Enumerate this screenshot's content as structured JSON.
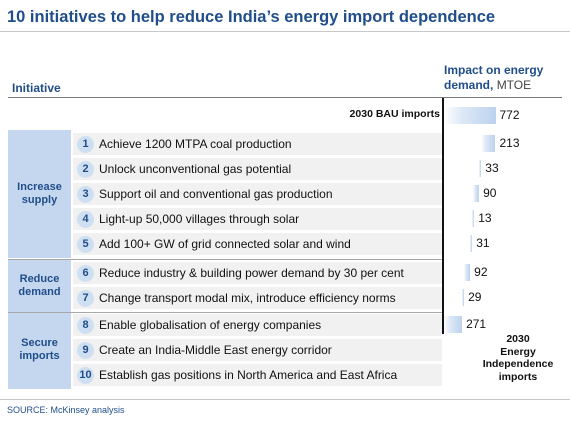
{
  "title": "10 initiatives to help reduce India’s energy import dependence",
  "source": "SOURCE: McKinsey analysis",
  "chart_data": {
    "type": "waterfall",
    "column_headers": {
      "initiative": "Initiative",
      "impact": "Impact on energy demand,",
      "unit": "MTOE"
    },
    "start": {
      "label": "2030 BAU imports",
      "value": 772
    },
    "end": {
      "label": "2030 Energy Independence imports",
      "label_lines": [
        "2030",
        "Energy",
        "Independence",
        "imports"
      ],
      "value": 271
    },
    "groups": [
      {
        "name": "Increase supply",
        "lines": [
          "Increase",
          "supply"
        ],
        "rows": [
          1,
          2,
          3,
          4,
          5
        ]
      },
      {
        "name": "Reduce demand",
        "lines": [
          "Reduce",
          "demand"
        ],
        "rows": [
          6,
          7
        ]
      },
      {
        "name": "Secure imports",
        "lines": [
          "Secure",
          "imports"
        ],
        "rows": [
          8,
          9,
          10
        ]
      }
    ],
    "initiatives": [
      {
        "number": "1",
        "label": "Achieve 1200 MTPA coal production",
        "value": 213
      },
      {
        "number": "2",
        "label": "Unlock unconventional gas potential",
        "value": 33
      },
      {
        "number": "3",
        "label": "Support oil and conventional gas production",
        "value": 90
      },
      {
        "number": "4",
        "label": "Light-up 50,000 villages through solar",
        "value": 13
      },
      {
        "number": "5",
        "label": "Add 100+ GW of grid connected solar and wind",
        "value": 31
      },
      {
        "number": "6",
        "label": "Reduce industry & building power demand by 30 per cent",
        "value": 92
      },
      {
        "number": "7",
        "label": "Change transport modal mix, introduce efficiency norms",
        "value": 29
      },
      {
        "number": "8",
        "label": "Enable globalisation of energy companies",
        "value": null
      },
      {
        "number": "9",
        "label": "Create an India-Middle East energy corridor",
        "value": null
      },
      {
        "number": "10",
        "label": "Establish gas positions in North America and East Africa",
        "value": null
      }
    ],
    "colors": {
      "title": "#1f4e8a",
      "group_fill": "#c5d7ee",
      "row_fill": "#f1f1f1",
      "bar": "#bcd2ee"
    }
  }
}
